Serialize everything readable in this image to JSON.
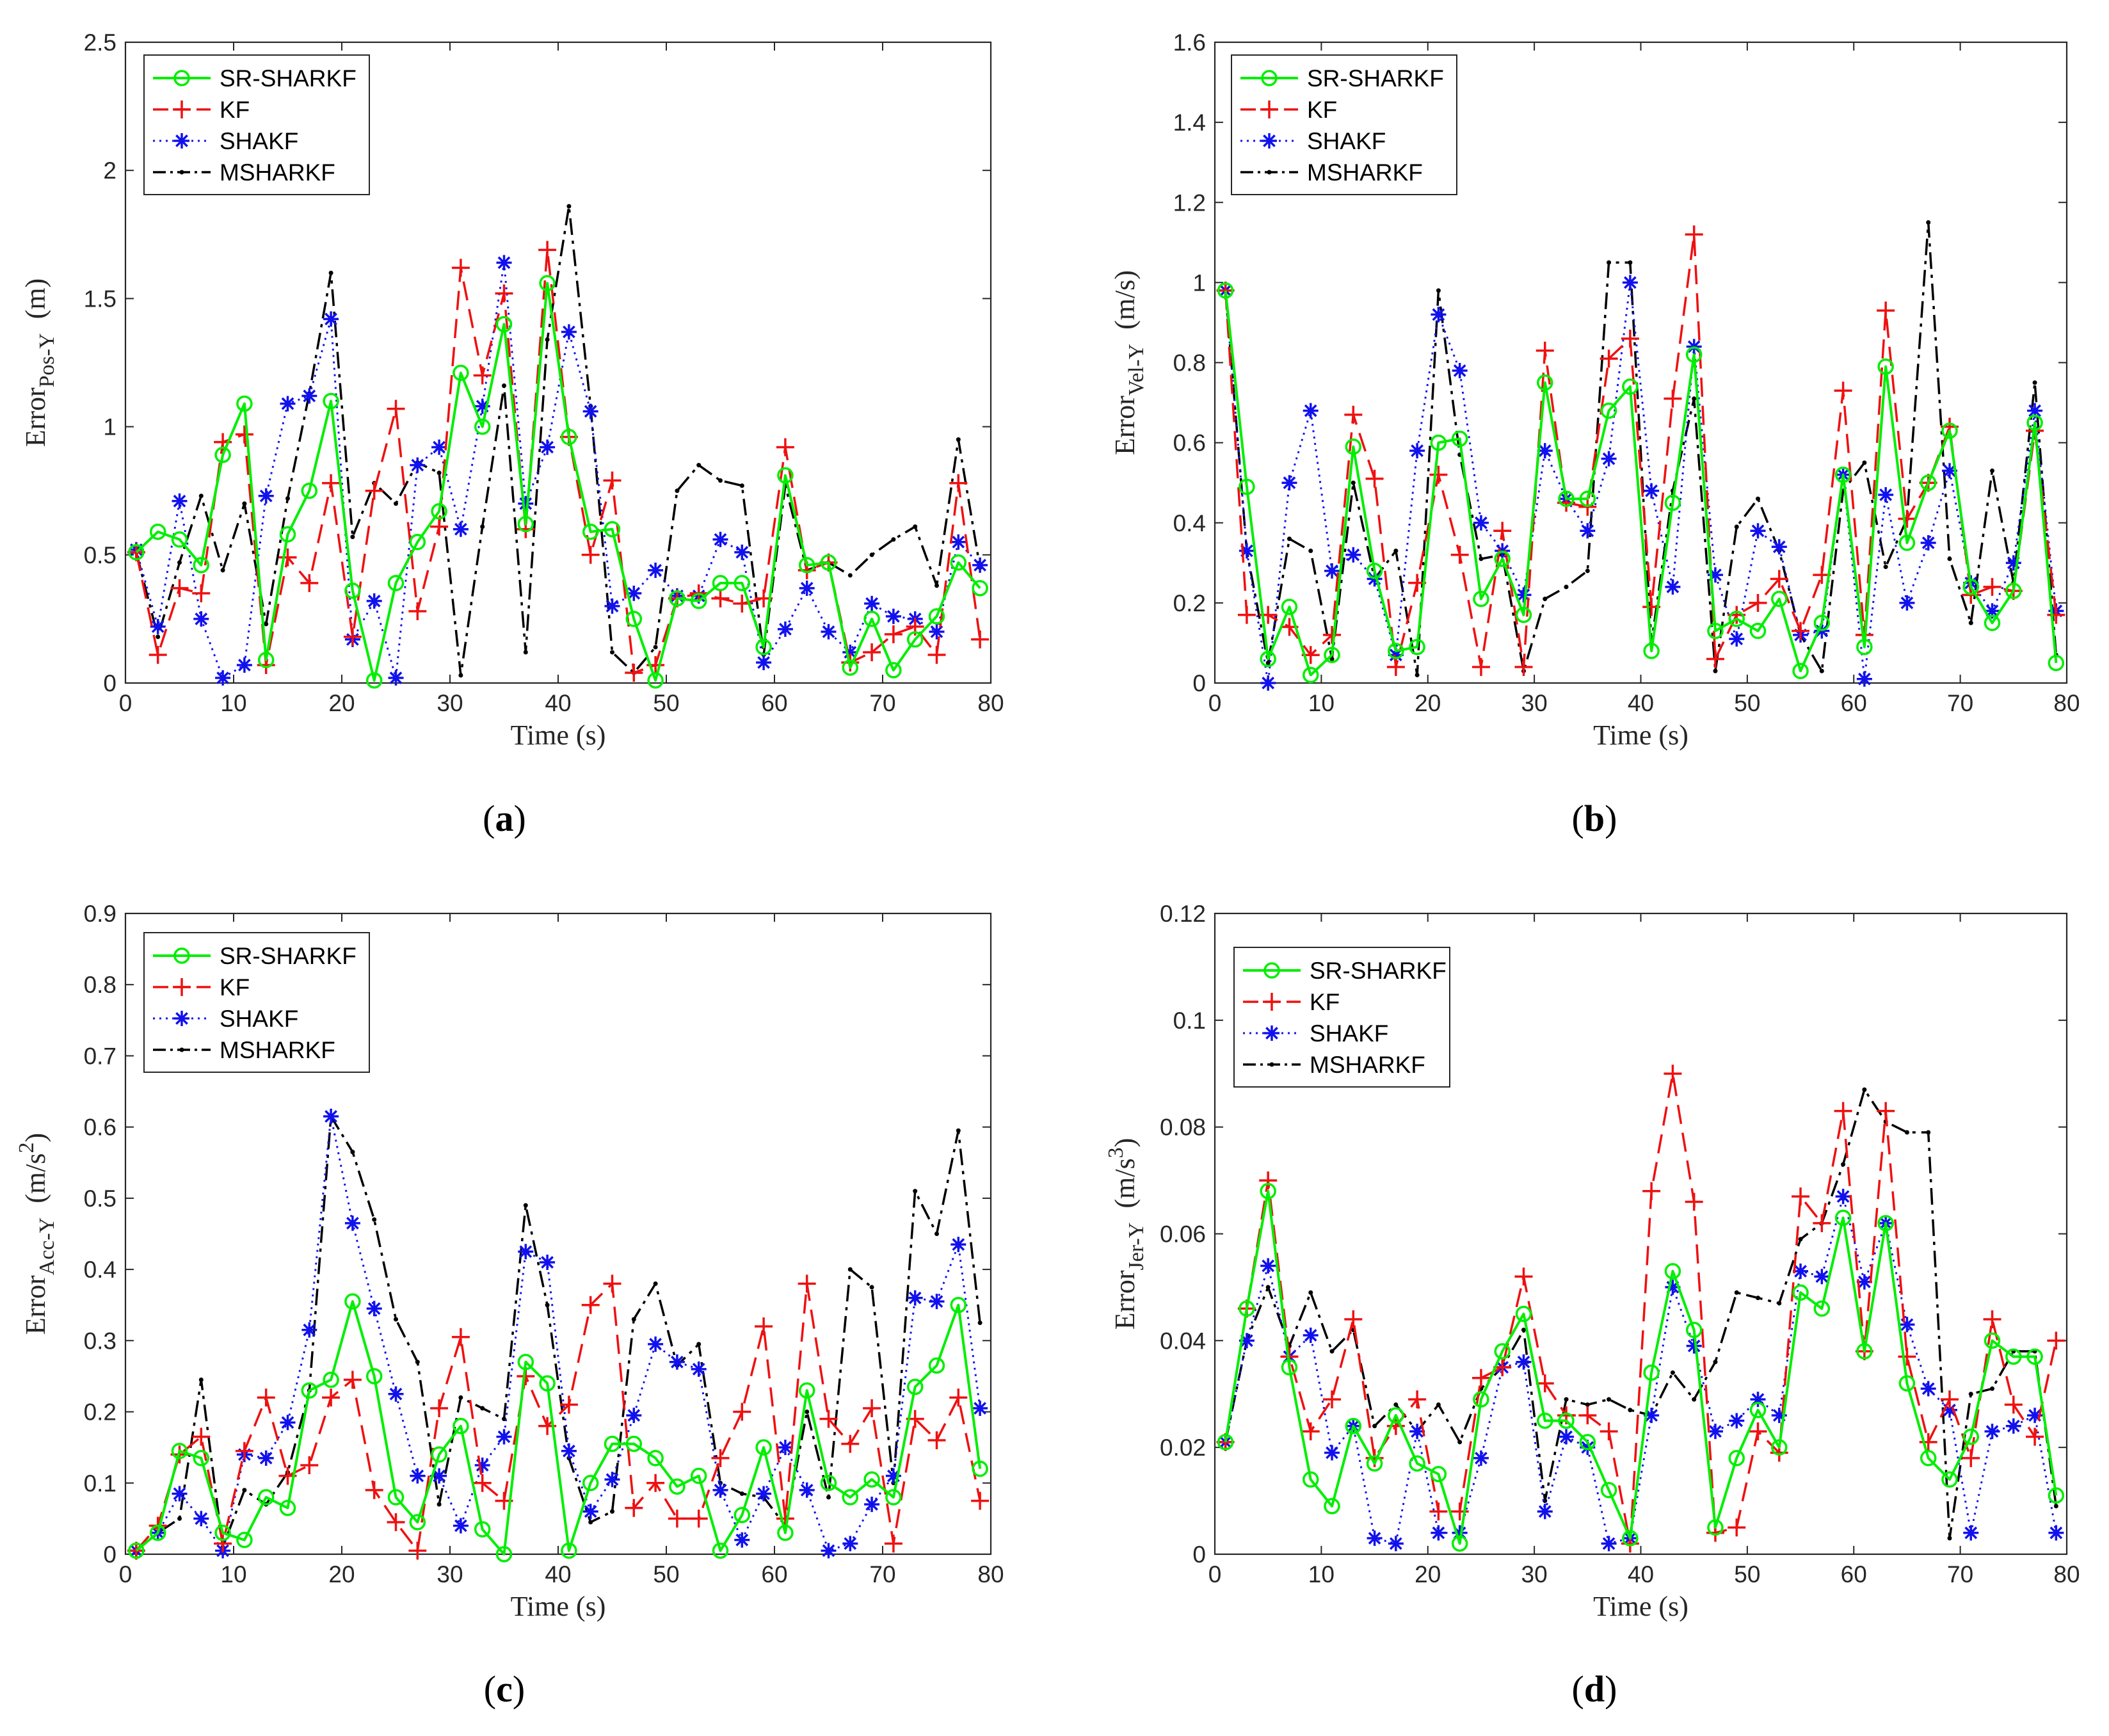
{
  "chart_data": [
    {
      "type": "line",
      "caption": "(a)",
      "xlabel": "Time (s)",
      "ylabel_main": "Error",
      "ylabel_sub": "Pos-Y",
      "ylabel_unit": "(m)",
      "ylabel_unit_sup": "",
      "xlim": [
        0,
        80
      ],
      "ylim": [
        0,
        2.5
      ],
      "xticks": [
        "0",
        "10",
        "20",
        "30",
        "40",
        "50",
        "60",
        "70",
        "80"
      ],
      "yticks": [
        "0",
        "0.5",
        "1",
        "1.5",
        "2",
        "2.5"
      ],
      "x": [
        1,
        3,
        5,
        7,
        9,
        11,
        13,
        15,
        17,
        19,
        21,
        23,
        25,
        27,
        29,
        31,
        33,
        35,
        37,
        39,
        41,
        43,
        45,
        47,
        49,
        51,
        53,
        55,
        57,
        59,
        61,
        63,
        65,
        67,
        69,
        71,
        73,
        75,
        77,
        79
      ],
      "series": [
        {
          "name": "SR-SHARKF",
          "values": [
            0.51,
            0.59,
            0.56,
            0.46,
            0.89,
            1.09,
            0.09,
            0.58,
            0.75,
            1.1,
            0.36,
            0.01,
            0.39,
            0.55,
            0.67,
            1.21,
            1.0,
            1.4,
            0.62,
            1.56,
            0.96,
            0.59,
            0.6,
            0.25,
            0.01,
            0.33,
            0.32,
            0.39,
            0.39,
            0.14,
            0.81,
            0.46,
            0.47,
            0.06,
            0.25,
            0.05,
            0.17,
            0.26,
            0.47,
            0.37
          ]
        },
        {
          "name": "KF",
          "values": [
            0.51,
            0.11,
            0.37,
            0.35,
            0.94,
            0.97,
            0.07,
            0.49,
            0.39,
            0.78,
            0.18,
            0.75,
            1.07,
            0.28,
            0.61,
            1.62,
            1.2,
            1.52,
            0.6,
            1.69,
            0.96,
            0.5,
            0.79,
            0.04,
            0.07,
            0.33,
            0.35,
            0.33,
            0.31,
            0.33,
            0.92,
            0.44,
            0.47,
            0.08,
            0.12,
            0.19,
            0.22,
            0.11,
            0.78,
            0.17
          ]
        },
        {
          "name": "SHAKF",
          "values": [
            0.52,
            0.22,
            0.71,
            0.25,
            0.02,
            0.07,
            0.73,
            1.09,
            1.12,
            1.42,
            0.17,
            0.32,
            0.02,
            0.85,
            0.92,
            0.6,
            1.08,
            1.64,
            0.7,
            0.92,
            1.37,
            1.06,
            0.3,
            0.35,
            0.44,
            0.34,
            0.34,
            0.56,
            0.51,
            0.08,
            0.21,
            0.37,
            0.2,
            0.12,
            0.31,
            0.26,
            0.25,
            0.2,
            0.55,
            0.46
          ]
        },
        {
          "name": "MSHARKF",
          "values": [
            0.51,
            0.18,
            0.47,
            0.73,
            0.44,
            0.7,
            0.23,
            0.72,
            1.13,
            1.6,
            0.57,
            0.78,
            0.7,
            0.86,
            0.82,
            0.03,
            0.61,
            1.16,
            0.12,
            1.34,
            1.86,
            1.08,
            0.12,
            0.04,
            0.14,
            0.75,
            0.85,
            0.79,
            0.77,
            0.11,
            0.77,
            0.44,
            0.47,
            0.42,
            0.5,
            0.56,
            0.61,
            0.38,
            0.95,
            0.45
          ]
        }
      ]
    },
    {
      "type": "line",
      "caption": "(b)",
      "xlabel": "Time (s)",
      "ylabel_main": "Error",
      "ylabel_sub": "Vel-Y",
      "ylabel_unit": "(m/s)",
      "ylabel_unit_sup": "",
      "xlim": [
        0,
        80
      ],
      "ylim": [
        0,
        1.6
      ],
      "xticks": [
        "0",
        "10",
        "20",
        "30",
        "40",
        "50",
        "60",
        "70",
        "80"
      ],
      "yticks": [
        "0",
        "0.2",
        "0.4",
        "0.6",
        "0.8",
        "1",
        "1.2",
        "1.4",
        "1.6"
      ],
      "x": [
        1,
        3,
        5,
        7,
        9,
        11,
        13,
        15,
        17,
        19,
        21,
        23,
        25,
        27,
        29,
        31,
        33,
        35,
        37,
        39,
        41,
        43,
        45,
        47,
        49,
        51,
        53,
        55,
        57,
        59,
        61,
        63,
        65,
        67,
        69,
        71,
        73,
        75,
        77,
        79
      ],
      "series": [
        {
          "name": "SR-SHARKF",
          "values": [
            0.98,
            0.49,
            0.06,
            0.19,
            0.02,
            0.07,
            0.59,
            0.28,
            0.08,
            0.09,
            0.6,
            0.61,
            0.21,
            0.31,
            0.17,
            0.75,
            0.46,
            0.46,
            0.68,
            0.74,
            0.08,
            0.45,
            0.82,
            0.13,
            0.16,
            0.13,
            0.21,
            0.03,
            0.15,
            0.52,
            0.09,
            0.79,
            0.35,
            0.5,
            0.63,
            0.24,
            0.15,
            0.23,
            0.65,
            0.05
          ]
        },
        {
          "name": "KF",
          "values": [
            0.98,
            0.17,
            0.17,
            0.14,
            0.07,
            0.12,
            0.67,
            0.51,
            0.04,
            0.25,
            0.52,
            0.32,
            0.04,
            0.38,
            0.04,
            0.83,
            0.45,
            0.44,
            0.81,
            0.86,
            0.19,
            0.71,
            1.12,
            0.06,
            0.17,
            0.2,
            0.26,
            0.13,
            0.27,
            0.73,
            0.12,
            0.93,
            0.41,
            0.5,
            0.64,
            0.22,
            0.24,
            0.23,
            0.63,
            0.17
          ]
        },
        {
          "name": "SHAKF",
          "values": [
            0.98,
            0.33,
            0.0,
            0.5,
            0.68,
            0.28,
            0.32,
            0.26,
            0.07,
            0.58,
            0.92,
            0.78,
            0.4,
            0.33,
            0.22,
            0.58,
            0.46,
            0.38,
            0.56,
            1.0,
            0.48,
            0.24,
            0.84,
            0.27,
            0.11,
            0.38,
            0.34,
            0.12,
            0.13,
            0.52,
            0.01,
            0.47,
            0.2,
            0.35,
            0.53,
            0.25,
            0.18,
            0.3,
            0.68,
            0.18
          ]
        },
        {
          "name": "MSHARKF",
          "values": [
            0.98,
            0.33,
            0.05,
            0.36,
            0.33,
            0.06,
            0.5,
            0.26,
            0.33,
            0.02,
            0.98,
            0.57,
            0.31,
            0.32,
            0.03,
            0.21,
            0.24,
            0.28,
            1.05,
            1.05,
            0.1,
            0.48,
            0.71,
            0.03,
            0.39,
            0.46,
            0.33,
            0.12,
            0.03,
            0.48,
            0.55,
            0.29,
            0.41,
            1.15,
            0.31,
            0.15,
            0.53,
            0.25,
            0.75,
            0.07
          ]
        }
      ]
    },
    {
      "type": "line",
      "caption": "(c)",
      "xlabel": "Time (s)",
      "ylabel_main": "Error",
      "ylabel_sub": "Acc-Y",
      "ylabel_unit": "(m/s",
      "ylabel_unit_sup": "2",
      "xlim": [
        0,
        80
      ],
      "ylim": [
        0,
        0.9
      ],
      "xticks": [
        "0",
        "10",
        "20",
        "30",
        "40",
        "50",
        "60",
        "70",
        "80"
      ],
      "yticks": [
        "0",
        "0.1",
        "0.2",
        "0.3",
        "0.4",
        "0.5",
        "0.6",
        "0.7",
        "0.8",
        "0.9"
      ],
      "x": [
        1,
        3,
        5,
        7,
        9,
        11,
        13,
        15,
        17,
        19,
        21,
        23,
        25,
        27,
        29,
        31,
        33,
        35,
        37,
        39,
        41,
        43,
        45,
        47,
        49,
        51,
        53,
        55,
        57,
        59,
        61,
        63,
        65,
        67,
        69,
        71,
        73,
        75,
        77,
        79
      ],
      "series": [
        {
          "name": "SR-SHARKF",
          "values": [
            0.005,
            0.03,
            0.145,
            0.135,
            0.03,
            0.02,
            0.08,
            0.065,
            0.23,
            0.245,
            0.355,
            0.25,
            0.08,
            0.045,
            0.14,
            0.18,
            0.035,
            0.0,
            0.27,
            0.24,
            0.005,
            0.1,
            0.155,
            0.155,
            0.135,
            0.095,
            0.11,
            0.005,
            0.055,
            0.15,
            0.03,
            0.23,
            0.1,
            0.08,
            0.105,
            0.08,
            0.235,
            0.265,
            0.35,
            0.12
          ]
        },
        {
          "name": "KF",
          "values": [
            0.005,
            0.04,
            0.14,
            0.165,
            0.015,
            0.145,
            0.22,
            0.11,
            0.125,
            0.22,
            0.245,
            0.09,
            0.045,
            0.005,
            0.205,
            0.305,
            0.1,
            0.075,
            0.25,
            0.18,
            0.21,
            0.35,
            0.38,
            0.065,
            0.1,
            0.05,
            0.05,
            0.135,
            0.2,
            0.32,
            0.05,
            0.38,
            0.19,
            0.155,
            0.205,
            0.015,
            0.19,
            0.16,
            0.22,
            0.075
          ]
        },
        {
          "name": "SHAKF",
          "values": [
            0.005,
            0.03,
            0.085,
            0.05,
            0.005,
            0.14,
            0.135,
            0.185,
            0.315,
            0.615,
            0.465,
            0.345,
            0.225,
            0.11,
            0.11,
            0.04,
            0.125,
            0.165,
            0.425,
            0.41,
            0.145,
            0.06,
            0.105,
            0.195,
            0.295,
            0.27,
            0.26,
            0.09,
            0.02,
            0.085,
            0.15,
            0.09,
            0.005,
            0.015,
            0.07,
            0.11,
            0.36,
            0.355,
            0.435,
            0.205
          ]
        },
        {
          "name": "MSHARKF",
          "values": [
            0.005,
            0.03,
            0.05,
            0.245,
            0.01,
            0.09,
            0.07,
            0.115,
            0.23,
            0.615,
            0.565,
            0.47,
            0.33,
            0.27,
            0.07,
            0.22,
            0.205,
            0.19,
            0.49,
            0.35,
            0.135,
            0.045,
            0.06,
            0.33,
            0.38,
            0.265,
            0.295,
            0.1,
            0.085,
            0.08,
            0.04,
            0.2,
            0.08,
            0.4,
            0.375,
            0.1,
            0.51,
            0.45,
            0.595,
            0.325
          ]
        }
      ]
    },
    {
      "type": "line",
      "caption": "(d)",
      "xlabel": "Time (s)",
      "ylabel_main": "Error",
      "ylabel_sub": "Jer-Y",
      "ylabel_unit": "(m/s",
      "ylabel_unit_sup": "3",
      "xlim": [
        0,
        80
      ],
      "ylim": [
        0,
        0.12
      ],
      "xticks": [
        "0",
        "10",
        "20",
        "30",
        "40",
        "50",
        "60",
        "70",
        "80"
      ],
      "yticks": [
        "0",
        "0.02",
        "0.04",
        "0.06",
        "0.08",
        "0.1",
        "0.12"
      ],
      "x": [
        1,
        3,
        5,
        7,
        9,
        11,
        13,
        15,
        17,
        19,
        21,
        23,
        25,
        27,
        29,
        31,
        33,
        35,
        37,
        39,
        41,
        43,
        45,
        47,
        49,
        51,
        53,
        55,
        57,
        59,
        61,
        63,
        65,
        67,
        69,
        71,
        73,
        75,
        77,
        79
      ],
      "series": [
        {
          "name": "SR-SHARKF",
          "values": [
            0.021,
            0.046,
            0.068,
            0.035,
            0.014,
            0.009,
            0.024,
            0.017,
            0.026,
            0.017,
            0.015,
            0.002,
            0.029,
            0.038,
            0.045,
            0.025,
            0.025,
            0.021,
            0.012,
            0.003,
            0.034,
            0.053,
            0.042,
            0.005,
            0.018,
            0.027,
            0.02,
            0.049,
            0.046,
            0.063,
            0.038,
            0.062,
            0.032,
            0.018,
            0.014,
            0.022,
            0.04,
            0.037,
            0.037,
            0.011
          ]
        },
        {
          "name": "KF",
          "values": [
            0.021,
            0.046,
            0.07,
            0.037,
            0.023,
            0.029,
            0.044,
            0.018,
            0.024,
            0.029,
            0.008,
            0.008,
            0.033,
            0.035,
            0.052,
            0.032,
            0.026,
            0.026,
            0.023,
            0.002,
            0.068,
            0.09,
            0.066,
            0.004,
            0.005,
            0.023,
            0.019,
            0.067,
            0.062,
            0.083,
            0.038,
            0.083,
            0.037,
            0.021,
            0.029,
            0.018,
            0.044,
            0.028,
            0.022,
            0.04
          ]
        },
        {
          "name": "SHAKF",
          "values": [
            0.021,
            0.04,
            0.054,
            0.037,
            0.041,
            0.019,
            0.024,
            0.003,
            0.002,
            0.023,
            0.004,
            0.004,
            0.018,
            0.035,
            0.036,
            0.008,
            0.022,
            0.02,
            0.002,
            0.003,
            0.026,
            0.05,
            0.039,
            0.023,
            0.025,
            0.029,
            0.026,
            0.053,
            0.052,
            0.067,
            0.051,
            0.062,
            0.043,
            0.031,
            0.027,
            0.004,
            0.023,
            0.024,
            0.026,
            0.004
          ]
        },
        {
          "name": "MSHARKF",
          "values": [
            0.021,
            0.04,
            0.05,
            0.039,
            0.049,
            0.038,
            0.042,
            0.024,
            0.028,
            0.023,
            0.028,
            0.021,
            0.031,
            0.035,
            0.042,
            0.01,
            0.029,
            0.028,
            0.029,
            0.027,
            0.026,
            0.034,
            0.029,
            0.036,
            0.049,
            0.048,
            0.047,
            0.059,
            0.062,
            0.073,
            0.087,
            0.081,
            0.079,
            0.079,
            0.003,
            0.03,
            0.031,
            0.038,
            0.038,
            0.009
          ]
        }
      ]
    }
  ],
  "legend": [
    "SR-SHARKF",
    "KF",
    "SHAKF",
    "MSHARKF"
  ],
  "colors": {
    "SR-SHARKF": "#00ee00",
    "KF": "#ee1111",
    "SHAKF": "#1111ee",
    "MSHARKF": "#000000"
  }
}
